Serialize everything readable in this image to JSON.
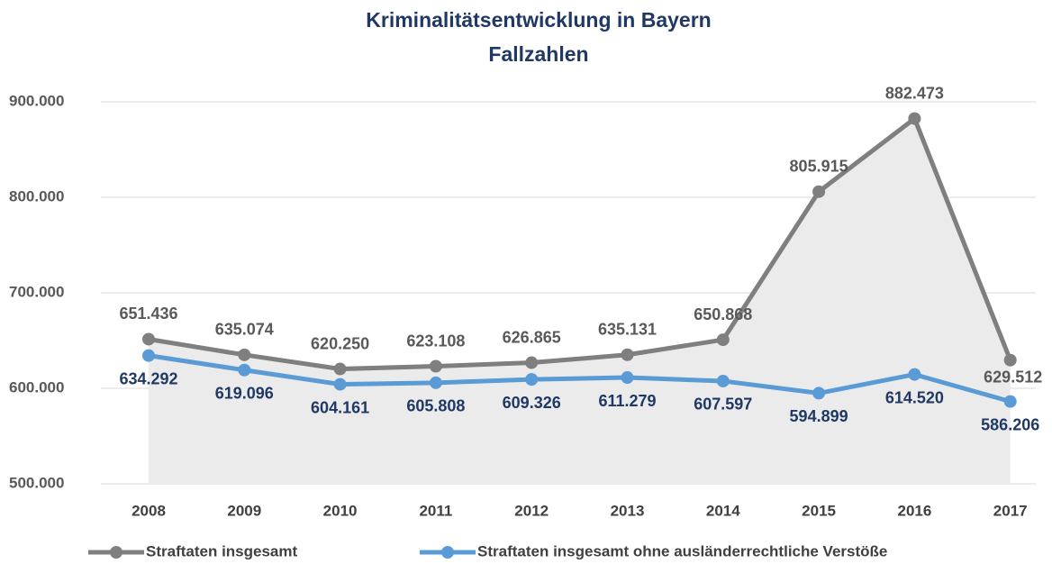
{
  "chart_data": {
    "type": "line",
    "title": "Kriminalitätsentwicklung in Bayern",
    "subtitle": "Fallzahlen",
    "categories": [
      "2008",
      "2009",
      "2010",
      "2011",
      "2012",
      "2013",
      "2014",
      "2015",
      "2016",
      "2017"
    ],
    "series": [
      {
        "name": "Straftaten insgesamt",
        "color": "#7f7f7f",
        "values": [
          651436,
          635074,
          620250,
          623108,
          626865,
          635131,
          650868,
          805915,
          882473,
          629512
        ],
        "value_labels": [
          "651.436",
          "635.074",
          "620.250",
          "623.108",
          "626.865",
          "635.131",
          "650.868",
          "805.915",
          "882.473",
          "629.512"
        ]
      },
      {
        "name": "Straftaten insgesamt ohne ausländerrechtliche Verstöße",
        "color": "#5b9bd5",
        "values": [
          634292,
          619096,
          604161,
          605808,
          609326,
          611279,
          607597,
          594899,
          614520,
          586206
        ],
        "value_labels": [
          "634.292",
          "619.096",
          "604.161",
          "605.808",
          "609.326",
          "611.279",
          "607.597",
          "594.899",
          "614.520",
          "586.206"
        ]
      }
    ],
    "ylim": [
      500000,
      900000
    ],
    "yticks": [
      {
        "value": 500000,
        "label": "500.000"
      },
      {
        "value": 600000,
        "label": "600.000"
      },
      {
        "value": 700000,
        "label": "700.000"
      },
      {
        "value": 800000,
        "label": "800.000"
      },
      {
        "value": 900000,
        "label": "900.000"
      }
    ],
    "grid": true,
    "legend": "bottom"
  }
}
